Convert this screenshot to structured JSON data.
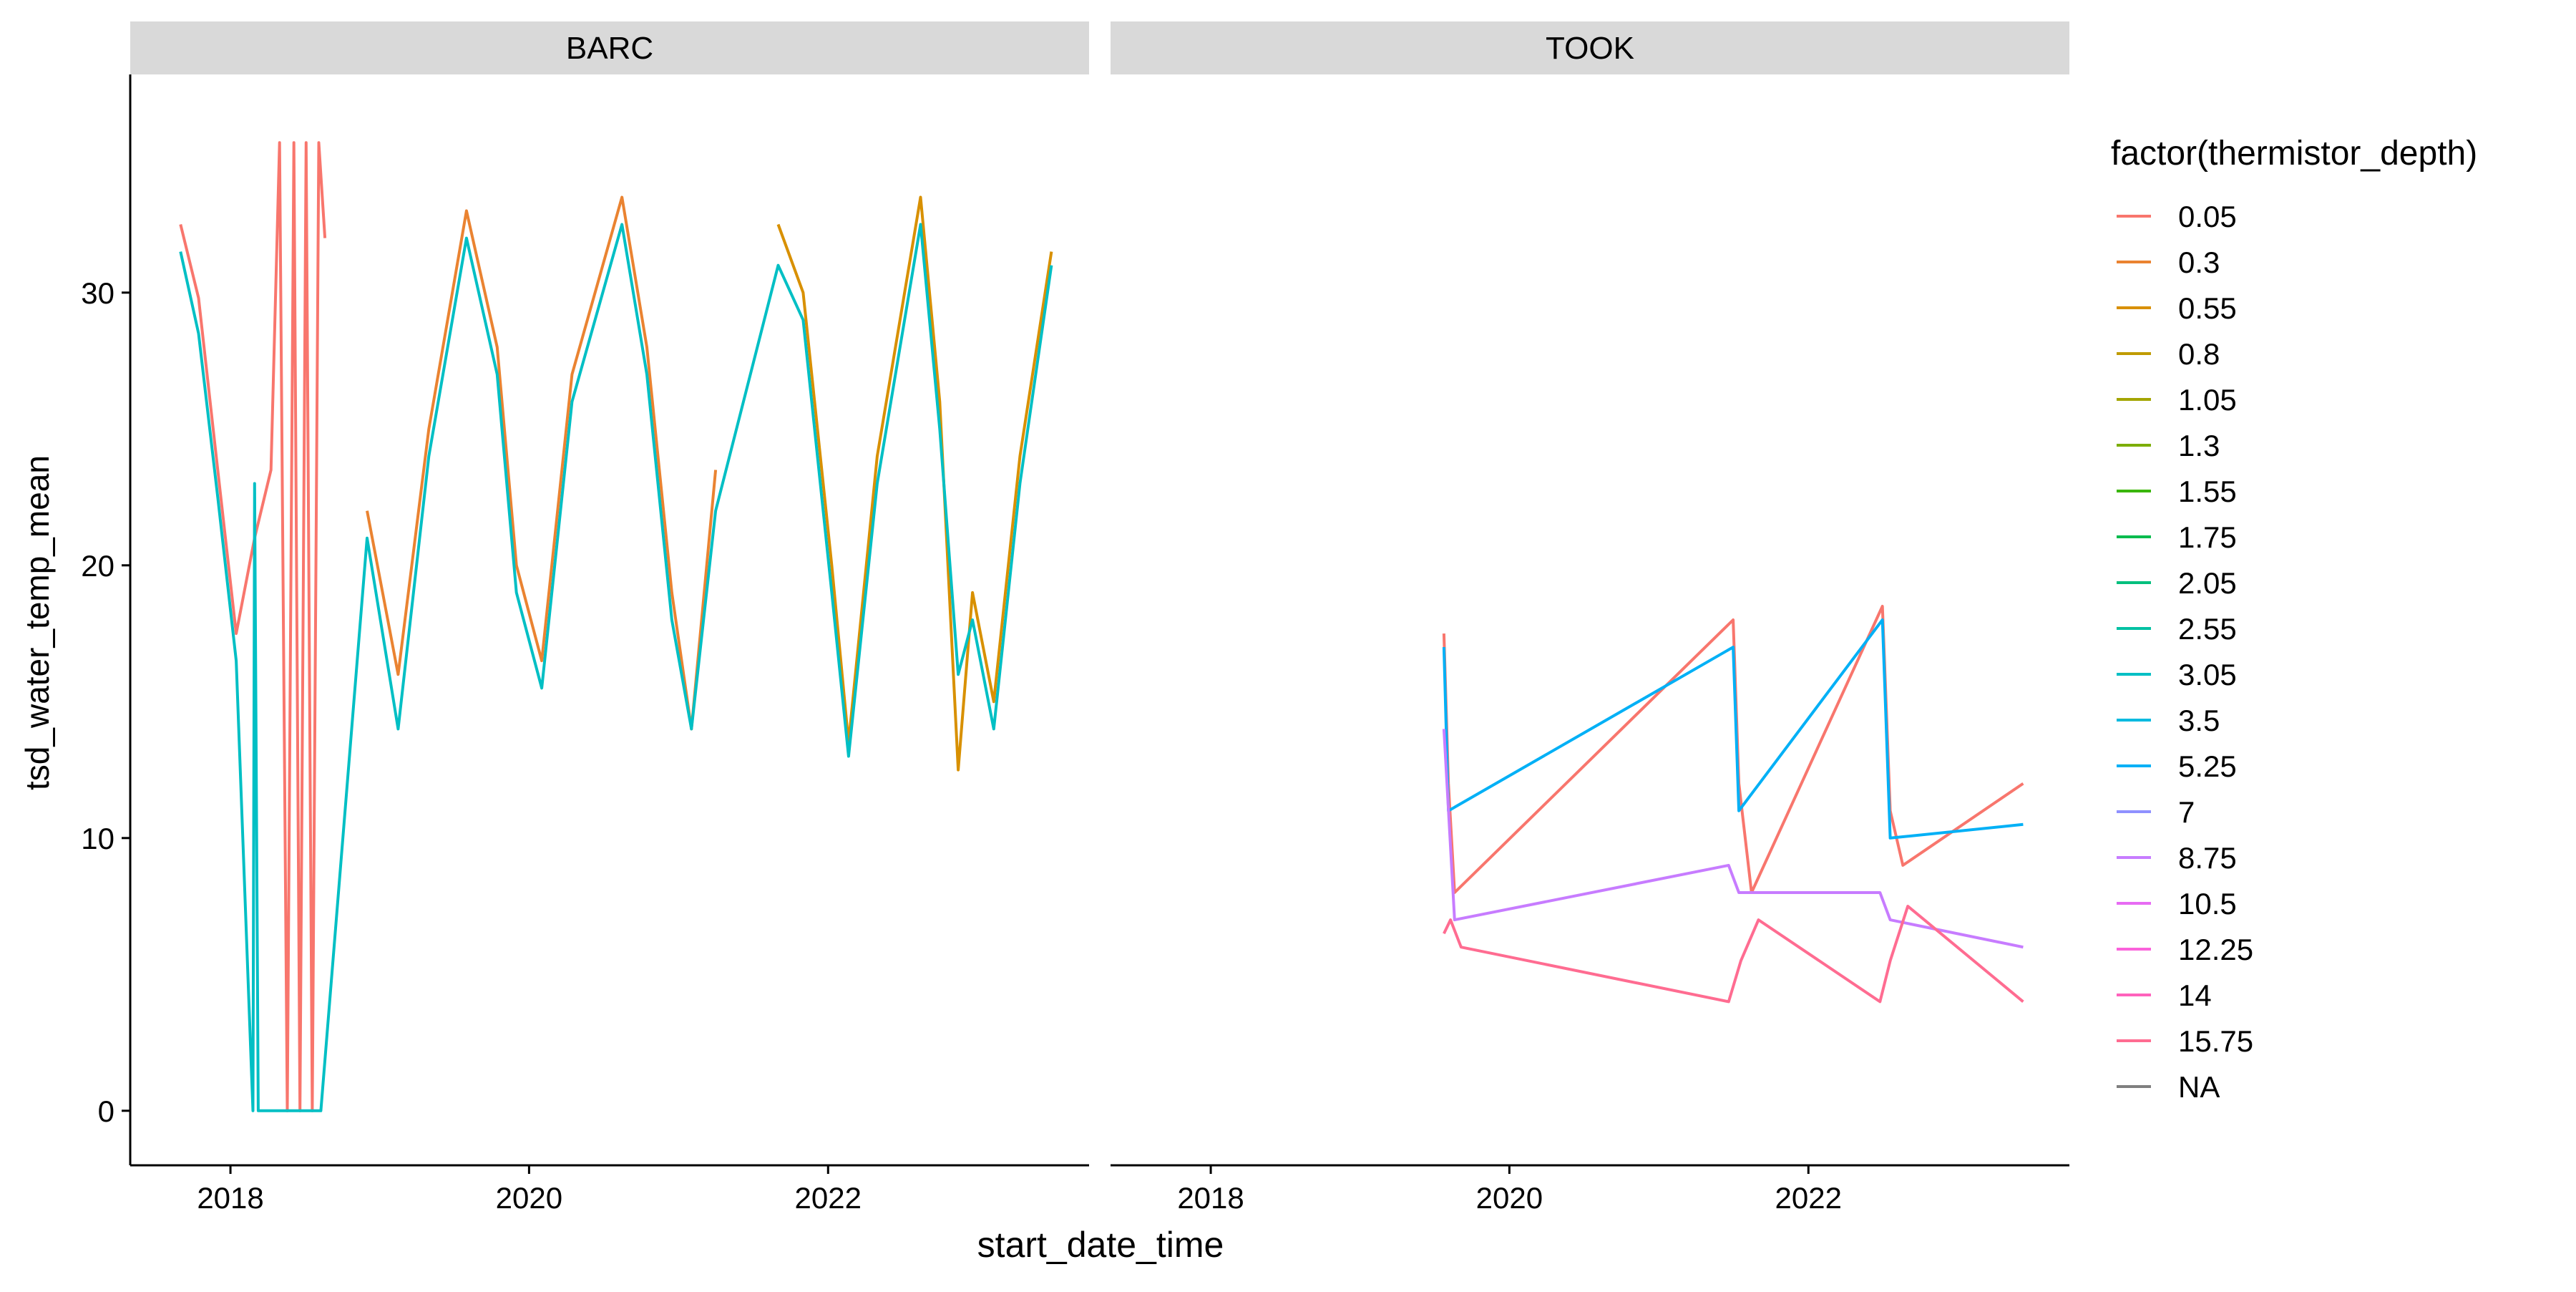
{
  "chart_data": {
    "type": "line",
    "title": "",
    "xlabel": "start_date_time",
    "ylabel": "tsd_water_temp_mean",
    "x_axis": {
      "type": "date",
      "range": [
        "2017-05-01",
        "2023-10-01"
      ],
      "ticks": [
        "2018",
        "2020",
        "2022"
      ]
    },
    "y_axis": {
      "range": [
        -2,
        38
      ],
      "ticks": [
        "0",
        "10",
        "20",
        "30"
      ]
    },
    "grid": false,
    "legend": {
      "title": "factor(thermistor_depth)",
      "placement": "right",
      "entries": [
        {
          "label": "0.05",
          "color": "#F8766D"
        },
        {
          "label": "0.3",
          "color": "#EA8331"
        },
        {
          "label": "0.55",
          "color": "#D89000"
        },
        {
          "label": "0.8",
          "color": "#C09B00"
        },
        {
          "label": "1.05",
          "color": "#A3A500"
        },
        {
          "label": "1.3",
          "color": "#7CAE00"
        },
        {
          "label": "1.55",
          "color": "#39B600"
        },
        {
          "label": "1.75",
          "color": "#00BB4E"
        },
        {
          "label": "2.05",
          "color": "#00BF7D"
        },
        {
          "label": "2.55",
          "color": "#00C1A3"
        },
        {
          "label": "3.05",
          "color": "#00BFC4"
        },
        {
          "label": "3.5",
          "color": "#00BAE0"
        },
        {
          "label": "5.25",
          "color": "#00B0F6"
        },
        {
          "label": "7",
          "color": "#8F91FF"
        },
        {
          "label": "8.75",
          "color": "#C77CFF"
        },
        {
          "label": "10.5",
          "color": "#E76BF3"
        },
        {
          "label": "12.25",
          "color": "#FA62DB"
        },
        {
          "label": "14",
          "color": "#FF62BC"
        },
        {
          "label": "15.75",
          "color": "#FF6C91"
        },
        {
          "label": "NA",
          "color": "#7F7F7F"
        }
      ]
    },
    "panels": [
      {
        "strip": "BARC",
        "series": [
          {
            "name": "0.05",
            "color": "#F8766D",
            "points": [
              [
                "2017-09-01",
                32.5
              ],
              [
                "2017-10-15",
                29.8
              ],
              [
                "2017-12-01",
                23.5
              ],
              [
                "2018-01-15",
                17.5
              ],
              [
                "2018-03-01",
                21
              ],
              [
                "2018-04-10",
                23.5
              ],
              [
                "2018-05-01",
                35.5
              ],
              [
                "2018-05-20",
                0
              ],
              [
                "2018-06-05",
                35.5
              ],
              [
                "2018-06-20",
                0
              ],
              [
                "2018-07-05",
                35.5
              ],
              [
                "2018-07-20",
                0
              ],
              [
                "2018-08-05",
                35.5
              ],
              [
                "2018-08-20",
                32
              ]
            ]
          },
          {
            "name": "0.3",
            "color": "#EA8331",
            "points": [
              [
                "2018-12-01",
                22
              ],
              [
                "2019-02-15",
                16
              ],
              [
                "2019-05-01",
                25
              ],
              [
                "2019-08-01",
                33
              ],
              [
                "2019-10-15",
                28
              ],
              [
                "2019-12-01",
                20
              ],
              [
                "2020-02-01",
                16.5
              ],
              [
                "2020-04-15",
                27
              ],
              [
                "2020-08-15",
                33.5
              ],
              [
                "2020-10-15",
                28
              ],
              [
                "2020-12-15",
                19
              ],
              [
                "2021-02-01",
                14
              ],
              [
                "2021-04-01",
                23.5
              ]
            ]
          },
          {
            "name": "0.55",
            "color": "#D89000",
            "points": [
              [
                "2021-09-01",
                32.5
              ],
              [
                "2021-11-01",
                30
              ],
              [
                "2022-01-10",
                20
              ],
              [
                "2022-02-20",
                13.5
              ],
              [
                "2022-05-01",
                24
              ],
              [
                "2022-08-15",
                33.5
              ],
              [
                "2022-10-01",
                26
              ],
              [
                "2022-11-15",
                12.5
              ],
              [
                "2022-12-20",
                19
              ],
              [
                "2023-02-10",
                15
              ],
              [
                "2023-04-15",
                24
              ],
              [
                "2023-07-01",
                31.5
              ]
            ]
          },
          {
            "name": "3.05",
            "color": "#00BFC4",
            "points": [
              [
                "2017-09-01",
                31.5
              ],
              [
                "2017-10-15",
                28.5
              ],
              [
                "2017-12-01",
                22.5
              ],
              [
                "2018-01-15",
                16.5
              ],
              [
                "2018-02-25",
                0
              ],
              [
                "2018-03-01",
                23
              ],
              [
                "2018-03-10",
                0
              ],
              [
                "2018-08-10",
                0
              ],
              [
                "2018-12-01",
                21
              ],
              [
                "2019-02-15",
                14
              ],
              [
                "2019-05-01",
                24
              ],
              [
                "2019-08-01",
                32
              ],
              [
                "2019-10-15",
                27
              ],
              [
                "2019-12-01",
                19
              ],
              [
                "2020-02-01",
                15.5
              ],
              [
                "2020-04-15",
                26
              ],
              [
                "2020-08-15",
                32.5
              ],
              [
                "2020-10-15",
                27
              ],
              [
                "2020-12-15",
                18
              ],
              [
                "2021-02-01",
                14
              ],
              [
                "2021-04-01",
                22
              ],
              [
                "2021-09-01",
                31
              ],
              [
                "2021-11-01",
                29
              ],
              [
                "2022-01-10",
                19
              ],
              [
                "2022-02-20",
                13
              ],
              [
                "2022-05-01",
                23
              ],
              [
                "2022-08-15",
                32.5
              ],
              [
                "2022-10-01",
                25
              ],
              [
                "2022-11-15",
                16
              ],
              [
                "2022-12-20",
                18
              ],
              [
                "2023-02-10",
                14
              ],
              [
                "2023-04-15",
                23
              ],
              [
                "2023-07-01",
                31
              ]
            ]
          }
        ]
      },
      {
        "strip": "TOOK",
        "series": [
          {
            "name": "0.05",
            "color": "#F8766D",
            "points": [
              [
                "2019-07-25",
                17.5
              ],
              [
                "2019-08-05",
                12
              ],
              [
                "2019-08-20",
                8
              ],
              [
                "2021-07-01",
                18
              ],
              [
                "2021-07-15",
                12
              ],
              [
                "2021-08-15",
                8
              ],
              [
                "2022-07-01",
                18.5
              ],
              [
                "2022-07-20",
                11
              ],
              [
                "2022-08-20",
                9
              ],
              [
                "2023-06-10",
                12
              ]
            ]
          },
          {
            "name": "5.25",
            "color": "#00B0F6",
            "points": [
              [
                "2019-07-25",
                17
              ],
              [
                "2019-08-05",
                11
              ],
              [
                "2021-07-01",
                17
              ],
              [
                "2021-07-15",
                11
              ],
              [
                "2022-07-01",
                18
              ],
              [
                "2022-07-20",
                10
              ],
              [
                "2023-06-10",
                10.5
              ]
            ]
          },
          {
            "name": "8.75",
            "color": "#C77CFF",
            "points": [
              [
                "2019-07-25",
                14
              ],
              [
                "2019-08-20",
                7
              ],
              [
                "2021-06-20",
                9
              ],
              [
                "2021-07-15",
                8
              ],
              [
                "2022-06-25",
                8
              ],
              [
                "2022-07-20",
                7
              ],
              [
                "2023-06-10",
                6
              ]
            ]
          },
          {
            "name": "15.75",
            "color": "#FF6C91",
            "points": [
              [
                "2019-07-25",
                6.5
              ],
              [
                "2019-08-10",
                7
              ],
              [
                "2019-09-05",
                6
              ],
              [
                "2021-06-20",
                4
              ],
              [
                "2021-07-20",
                5.5
              ],
              [
                "2021-09-01",
                7
              ],
              [
                "2022-06-25",
                4
              ],
              [
                "2022-07-20",
                5.5
              ],
              [
                "2022-09-01",
                7.5
              ],
              [
                "2023-06-10",
                4
              ]
            ]
          }
        ]
      }
    ]
  }
}
